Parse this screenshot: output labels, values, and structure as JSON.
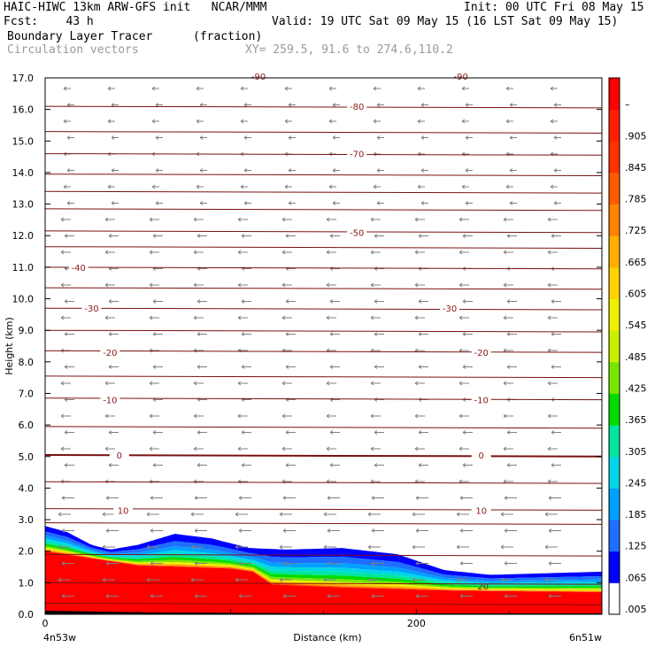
{
  "header": {
    "line1_left": "HAIC-HIWC 13km ARW-GFS init   NCAR/MMM",
    "line1_right": "Init: 00 UTC Fri 08 May 15",
    "line2_left": "Fcst:    43 h",
    "line2_right": "Valid: 19 UTC Sat 09 May 15 (16 LST Sat 09 May 15)",
    "field_name": "Boundary Layer Tracer",
    "field_units": "(fraction)",
    "vector_name": "Circulation vectors",
    "xy_text": "XY= 259.5, 91.6 to 274.6,110.2"
  },
  "chart_data": {
    "type": "heatmap",
    "title": "Boundary Layer Tracer",
    "xlabel": "Distance (km)",
    "ylabel": "Height (km)",
    "xlim": [
      0,
      300
    ],
    "ylim": [
      0,
      17
    ],
    "x_ticks": [
      0,
      200
    ],
    "x_end_labels": {
      "left": "4n53w",
      "right": "6n51w"
    },
    "y_ticks": [
      "0.0",
      "1.0",
      "2.0",
      "3.0",
      "4.0",
      "5.0",
      "6.0",
      "7.0",
      "8.0",
      "9.0",
      "10.0",
      "11.0",
      "12.0",
      "13.0",
      "14.0",
      "15.0",
      "16.0",
      "17.0"
    ],
    "colorbar": {
      "labels": [
        ".005",
        ".065",
        ".125",
        ".185",
        ".245",
        ".305",
        ".365",
        ".425",
        ".485",
        ".545",
        ".605",
        ".665",
        ".725",
        ".785",
        ".845",
        ".905",
        "–"
      ],
      "colors": [
        "#ffffff",
        "#0000ff",
        "#1e6eff",
        "#00a0ff",
        "#00d7e6",
        "#00e6a0",
        "#00dc00",
        "#78e600",
        "#c8f000",
        "#f0f000",
        "#ffd200",
        "#ffaf00",
        "#ff8200",
        "#ff5a00",
        "#ff3200",
        "#ff1e00",
        "#ff0000"
      ]
    },
    "tracer_top_km": [
      {
        "x": 0,
        "top": 2.8
      },
      {
        "x": 12,
        "top": 2.6
      },
      {
        "x": 25,
        "top": 2.2
      },
      {
        "x": 35,
        "top": 2.05
      },
      {
        "x": 50,
        "top": 2.2
      },
      {
        "x": 70,
        "top": 2.55
      },
      {
        "x": 90,
        "top": 2.4
      },
      {
        "x": 110,
        "top": 2.1
      },
      {
        "x": 130,
        "top": 2.05
      },
      {
        "x": 160,
        "top": 2.1
      },
      {
        "x": 190,
        "top": 1.9
      },
      {
        "x": 215,
        "top": 1.4
      },
      {
        "x": 240,
        "top": 1.25
      },
      {
        "x": 300,
        "top": 1.35
      }
    ],
    "red_top_km": [
      {
        "x": 0,
        "top": 2.0
      },
      {
        "x": 50,
        "top": 1.55
      },
      {
        "x": 100,
        "top": 1.45
      },
      {
        "x": 112,
        "top": 1.35
      },
      {
        "x": 122,
        "top": 0.95
      },
      {
        "x": 160,
        "top": 0.85
      },
      {
        "x": 220,
        "top": 0.75
      },
      {
        "x": 300,
        "top": 0.7
      }
    ],
    "temperature_contour_labels": [
      {
        "text": "-80",
        "x": 168,
        "y": 16.1
      },
      {
        "text": "-70",
        "x": 168,
        "y": 14.6
      },
      {
        "text": "-50",
        "x": 168,
        "y": 12.1
      },
      {
        "text": "-40",
        "x": 18,
        "y": 11.0
      },
      {
        "text": "-30",
        "x": 25,
        "y": 9.7
      },
      {
        "text": "-30",
        "x": 218,
        "y": 9.7
      },
      {
        "text": "-20",
        "x": 35,
        "y": 8.3
      },
      {
        "text": "-20",
        "x": 235,
        "y": 8.3
      },
      {
        "text": "-10",
        "x": 35,
        "y": 6.8
      },
      {
        "text": "-10",
        "x": 235,
        "y": 6.8
      },
      {
        "text": "0",
        "x": 40,
        "y": 5.05
      },
      {
        "text": "0",
        "x": 235,
        "y": 5.05
      },
      {
        "text": "10",
        "x": 42,
        "y": 3.3
      },
      {
        "text": "10",
        "x": 235,
        "y": 3.3
      },
      {
        "text": "20",
        "x": 236,
        "y": 0.9
      }
    ],
    "top_edge_labels": [
      {
        "text": "-90",
        "x": 115
      },
      {
        "text": "-90",
        "x": 224
      }
    ],
    "contour_levels_km": [
      0.35,
      1.0,
      1.9,
      2.9,
      3.35,
      4.2,
      5.05,
      5.95,
      6.85,
      7.55,
      8.35,
      9.0,
      9.7,
      10.35,
      11.0,
      11.65,
      12.15,
      12.85,
      13.4,
      13.95,
      14.6,
      15.3,
      16.1
    ]
  }
}
